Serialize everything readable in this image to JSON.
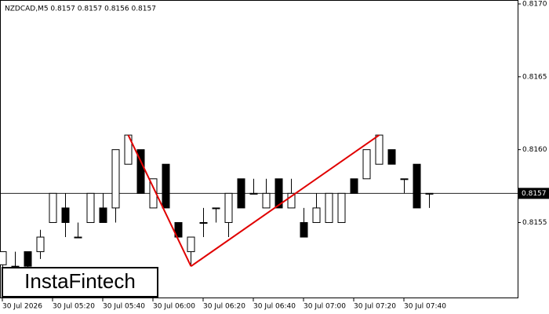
{
  "chart_data": {
    "type": "candlestick",
    "header": "NZDCAD,M5  0.8157 0.8157 0.8156 0.8157",
    "logo": "InstaFintech",
    "categories": [
      "30 Jul 2026",
      null,
      null,
      null,
      "30 Jul 05:20",
      null,
      null,
      null,
      "30 Jul 05:40",
      null,
      null,
      null,
      "30 Jul 06:00",
      null,
      null,
      null,
      "30 Jul 06:20",
      null,
      null,
      null,
      "30 Jul 06:40",
      null,
      null,
      null,
      "30 Jul 07:00",
      null,
      null,
      null,
      "30 Jul 07:20",
      null,
      null,
      null,
      "30 Jul 07:40",
      null,
      null
    ],
    "open": [
      0.81521,
      0.8152,
      0.8153,
      0.8153,
      0.8155,
      0.8156,
      0.8154,
      0.8155,
      0.8156,
      0.8156,
      0.8159,
      0.816,
      0.8156,
      0.8159,
      0.8155,
      0.8153,
      0.8155,
      0.8156,
      0.8155,
      0.8158,
      0.8157,
      0.8156,
      0.8158,
      0.8156,
      0.8155,
      0.8155,
      0.8155,
      0.8155,
      0.8158,
      0.8158,
      0.8159,
      0.816,
      0.8158,
      0.8159,
      0.8157
    ],
    "high": [
      0.8153,
      0.8153,
      0.8153,
      0.81545,
      0.8157,
      0.8157,
      0.8155,
      0.8157,
      0.8157,
      0.816,
      0.8161,
      0.816,
      0.8158,
      0.8159,
      0.8155,
      0.8154,
      0.8156,
      0.8156,
      0.8157,
      0.8158,
      0.8158,
      0.8158,
      0.8158,
      0.8158,
      0.8156,
      0.8157,
      0.8157,
      0.8157,
      0.8158,
      0.816,
      0.8161,
      0.816,
      0.8158,
      0.8159,
      0.8157
    ],
    "low": [
      0.81515,
      0.81515,
      0.81515,
      0.81525,
      0.8155,
      0.8154,
      0.8154,
      0.8155,
      0.8155,
      0.8155,
      0.8159,
      0.8157,
      0.8156,
      0.8156,
      0.8154,
      0.8152,
      0.8154,
      0.8155,
      0.8154,
      0.8156,
      0.8157,
      0.8156,
      0.8156,
      0.8156,
      0.8154,
      0.8155,
      0.8155,
      0.8155,
      0.8157,
      0.8158,
      0.8159,
      0.8159,
      0.8157,
      0.8156,
      0.8156
    ],
    "close": [
      0.8153,
      0.8152,
      0.8152,
      0.8154,
      0.8157,
      0.8155,
      0.8154,
      0.8157,
      0.8155,
      0.816,
      0.8161,
      0.8157,
      0.8158,
      0.8156,
      0.8154,
      0.8154,
      0.8155,
      0.8156,
      0.8157,
      0.8156,
      0.8157,
      0.8157,
      0.8156,
      0.8157,
      0.8154,
      0.8156,
      0.8157,
      0.8157,
      0.8157,
      0.816,
      0.8161,
      0.8159,
      0.8158,
      0.8156,
      0.8157
    ],
    "up_color": "#ffffff",
    "down_color": "#000000",
    "pattern": {
      "color": "#e00000",
      "values": [
        null,
        null,
        null,
        null,
        null,
        null,
        null,
        null,
        null,
        null,
        0.8161,
        null,
        null,
        null,
        null,
        0.8152,
        null,
        null,
        null,
        null,
        null,
        null,
        null,
        null,
        null,
        null,
        null,
        null,
        null,
        null,
        0.8161,
        null,
        null,
        null,
        null
      ]
    },
    "last_price": {
      "value": 0.8157,
      "label": "0.8157"
    },
    "ylim": [
      0.81498,
      0.817
    ],
    "yticks": [
      {
        "value": 0.817,
        "label": "0.8170"
      },
      0.8165,
      {
        "value": 0.816,
        "label": "0.8160"
      },
      0.8155
    ]
  }
}
